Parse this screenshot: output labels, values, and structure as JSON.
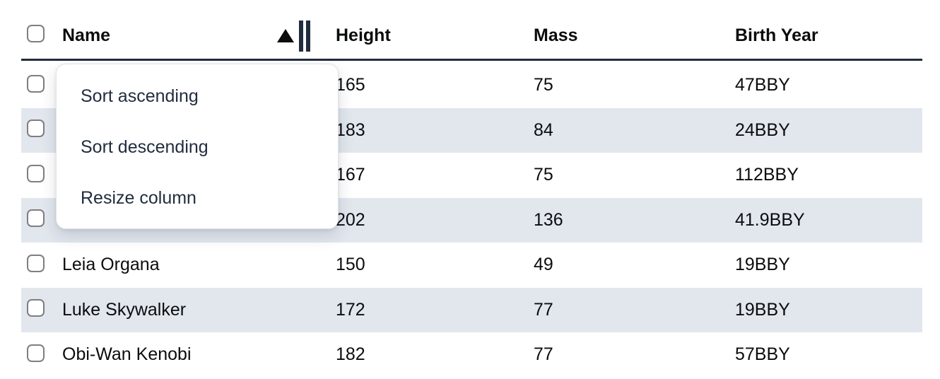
{
  "table": {
    "columns": [
      {
        "label": "Name",
        "sorted": "ascending"
      },
      {
        "label": "Height",
        "sorted": "none"
      },
      {
        "label": "Mass",
        "sorted": "none"
      },
      {
        "label": "Birth Year",
        "sorted": "none"
      }
    ],
    "rows": [
      {
        "name": "",
        "height": "165",
        "mass": "75",
        "birth_year": "47BBY"
      },
      {
        "name": "",
        "height": "183",
        "mass": "84",
        "birth_year": "24BBY"
      },
      {
        "name": "",
        "height": "167",
        "mass": "75",
        "birth_year": "112BBY"
      },
      {
        "name": "",
        "height": "202",
        "mass": "136",
        "birth_year": "41.9BBY"
      },
      {
        "name": "Leia Organa",
        "height": "150",
        "mass": "49",
        "birth_year": "19BBY"
      },
      {
        "name": "Luke Skywalker",
        "height": "172",
        "mass": "77",
        "birth_year": "19BBY"
      },
      {
        "name": "Obi-Wan Kenobi",
        "height": "182",
        "mass": "77",
        "birth_year": "57BBY"
      }
    ]
  },
  "context_menu": {
    "items": [
      {
        "label": "Sort ascending"
      },
      {
        "label": "Sort descending"
      },
      {
        "label": "Resize column"
      }
    ]
  },
  "icons": {
    "sort_indicator": "ascending-triangle",
    "column_resize": "double-vertical-bars"
  },
  "colors": {
    "stripe": "#e2e7ee",
    "header_underline": "#212c3c",
    "menu_text": "#222d3f",
    "table_text": "#0b0c0e",
    "checkbox_border": "#7e7e83"
  }
}
